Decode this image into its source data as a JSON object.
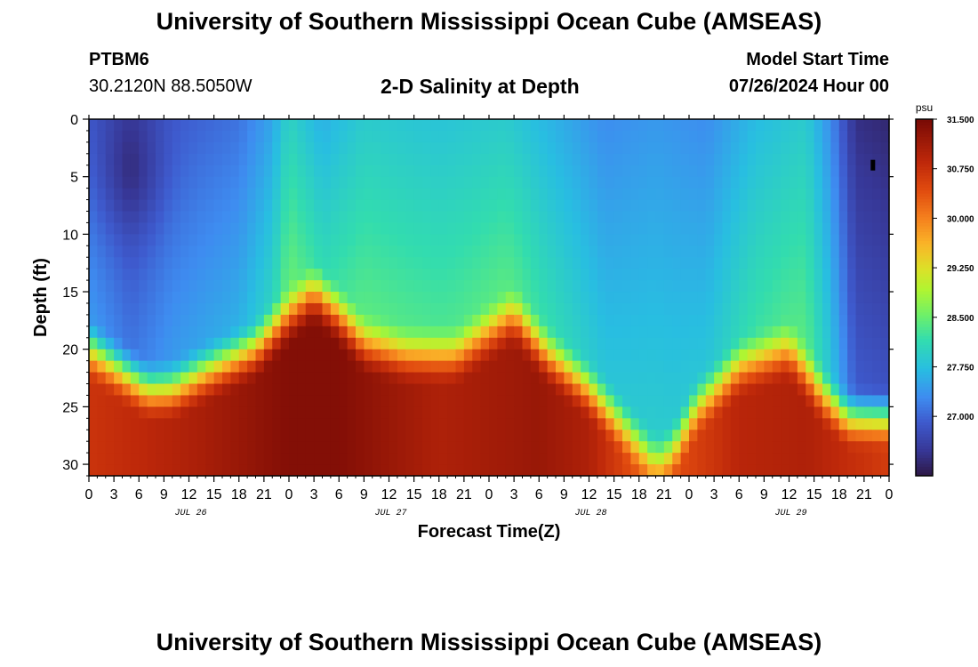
{
  "header": {
    "title": "University of Southern Mississippi Ocean Cube (AMSEAS)",
    "station_id": "PTBM6",
    "coords": "30.2120N  88.5050W",
    "subtitle": "2-D Salinity at Depth",
    "model_start_label": "Model Start Time",
    "model_start_value": "07/26/2024 Hour 00"
  },
  "footer": {
    "title": "University of Southern Mississippi Ocean Cube (AMSEAS)"
  },
  "chart_data": {
    "type": "heatmap",
    "title": "2-D Salinity at Depth",
    "xlabel": "Forecast Time(Z)",
    "ylabel": "Depth (ft)",
    "x_range_hours": [
      0,
      96
    ],
    "y_range_ft": [
      0,
      31
    ],
    "x_tick_labels": [
      "0",
      "3",
      "6",
      "9",
      "12",
      "15",
      "18",
      "21",
      "0",
      "3",
      "6",
      "9",
      "12",
      "15",
      "18",
      "21",
      "0",
      "3",
      "6",
      "9",
      "12",
      "15",
      "18",
      "21",
      "0",
      "3",
      "6",
      "9",
      "12",
      "15",
      "18",
      "21",
      "0"
    ],
    "day_labels": [
      {
        "label": "JUL 26",
        "hour": 12
      },
      {
        "label": "JUL 27",
        "hour": 36
      },
      {
        "label": "JUL 28",
        "hour": 60
      },
      {
        "label": "JUL 29",
        "hour": 84
      }
    ],
    "y_ticks": [
      0,
      5,
      10,
      15,
      20,
      25,
      30
    ],
    "colorbar": {
      "unit": "psu",
      "min": 26.1,
      "max": 31.5,
      "tick_values": [
        31.5,
        30.75,
        30.0,
        29.25,
        28.5,
        27.75,
        27.0
      ],
      "tick_labels": [
        "31.500",
        "30.750",
        "30.000",
        "29.250",
        "28.500",
        "27.750",
        "27.000"
      ]
    },
    "surface_salinity_psu": [
      {
        "hour": 0,
        "value": 26.9
      },
      {
        "hour": 5,
        "value": 26.6
      },
      {
        "hour": 10,
        "value": 26.9
      },
      {
        "hour": 18,
        "value": 27.1
      },
      {
        "hour": 22,
        "value": 27.5
      },
      {
        "hour": 24,
        "value": 28.0
      },
      {
        "hour": 28,
        "value": 27.6
      },
      {
        "hour": 33,
        "value": 27.9
      },
      {
        "hour": 42,
        "value": 27.8
      },
      {
        "hour": 50,
        "value": 27.9
      },
      {
        "hour": 56,
        "value": 27.6
      },
      {
        "hour": 62,
        "value": 27.3
      },
      {
        "hour": 68,
        "value": 27.4
      },
      {
        "hour": 74,
        "value": 27.3
      },
      {
        "hour": 80,
        "value": 27.7
      },
      {
        "hour": 86,
        "value": 27.9
      },
      {
        "hour": 89,
        "value": 27.3
      },
      {
        "hour": 92,
        "value": 26.4
      },
      {
        "hour": 96,
        "value": 26.3
      }
    ],
    "halocline_depth_ft": [
      {
        "hour": 0,
        "value": 17
      },
      {
        "hour": 4,
        "value": 19
      },
      {
        "hour": 7,
        "value": 20.5
      },
      {
        "hour": 10,
        "value": 20.5
      },
      {
        "hour": 14,
        "value": 19
      },
      {
        "hour": 20,
        "value": 17
      },
      {
        "hour": 24,
        "value": 14
      },
      {
        "hour": 27,
        "value": 12
      },
      {
        "hour": 30,
        "value": 14
      },
      {
        "hour": 33,
        "value": 16.5
      },
      {
        "hour": 38,
        "value": 17.5
      },
      {
        "hour": 44,
        "value": 17.5
      },
      {
        "hour": 51,
        "value": 14
      },
      {
        "hour": 55,
        "value": 17.5
      },
      {
        "hour": 60,
        "value": 20.5
      },
      {
        "hour": 65,
        "value": 24.5
      },
      {
        "hour": 68,
        "value": 27
      },
      {
        "hour": 70,
        "value": 26
      },
      {
        "hour": 73,
        "value": 22
      },
      {
        "hour": 78,
        "value": 18.5
      },
      {
        "hour": 84,
        "value": 17
      },
      {
        "hour": 88,
        "value": 21
      },
      {
        "hour": 91,
        "value": 23
      },
      {
        "hour": 96,
        "value": 23
      }
    ],
    "bottom_salinity_psu": [
      {
        "hour": 0,
        "value": 30.7
      },
      {
        "hour": 12,
        "value": 31.0
      },
      {
        "hour": 24,
        "value": 31.4
      },
      {
        "hour": 30,
        "value": 31.4
      },
      {
        "hour": 42,
        "value": 31.0
      },
      {
        "hour": 54,
        "value": 31.2
      },
      {
        "hour": 60,
        "value": 31.0
      },
      {
        "hour": 66,
        "value": 30.3
      },
      {
        "hour": 72,
        "value": 30.5
      },
      {
        "hour": 78,
        "value": 30.9
      },
      {
        "hour": 86,
        "value": 31.0
      },
      {
        "hour": 96,
        "value": 30.6
      }
    ],
    "marker": {
      "hour": 94,
      "depth_ft": 4
    }
  }
}
